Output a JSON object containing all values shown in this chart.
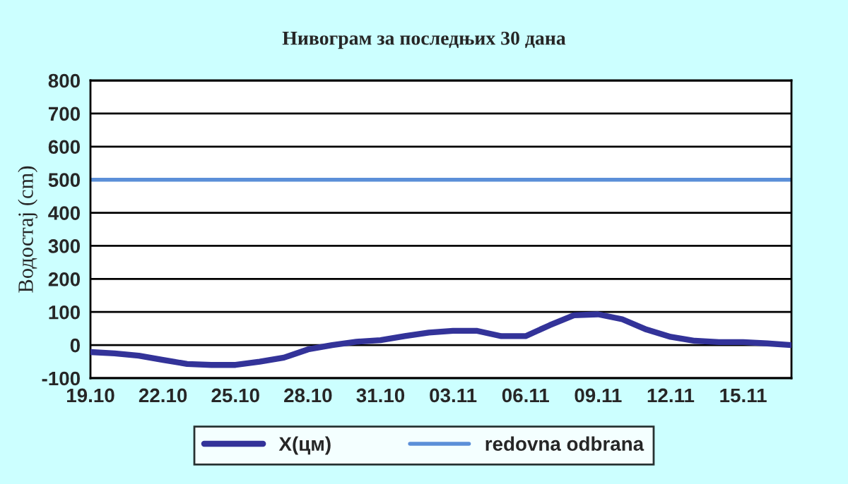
{
  "chart_data": {
    "type": "line",
    "title": "Нивограм за последњих 30 дана",
    "ylabel": "Водостај (cm)",
    "categories": [
      "19.10",
      null,
      null,
      "22.10",
      null,
      null,
      "25.10",
      null,
      null,
      "28.10",
      null,
      null,
      "31.10",
      null,
      null,
      "03.11",
      null,
      null,
      "06.11",
      null,
      null,
      "09.11",
      null,
      null,
      "12.11",
      null,
      null,
      "15.11",
      null,
      null
    ],
    "series": [
      {
        "name": "X(цм)",
        "color": "#333399",
        "values": [
          -21,
          -25,
          -32,
          -45,
          -57,
          -60,
          -60,
          -50,
          -38,
          -13,
          0,
          10,
          15,
          27,
          38,
          43,
          43,
          27,
          27,
          60,
          90,
          93,
          78,
          47,
          25,
          13,
          9,
          9,
          5,
          0
        ]
      }
    ],
    "ref_lines": [
      {
        "axis": "y",
        "value": 500,
        "label": "redovna odbrana",
        "color": "#5b8fd8",
        "line_style": "solid"
      }
    ],
    "ylim": [
      -100,
      800
    ],
    "yticks": [
      -100,
      0,
      100,
      200,
      300,
      400,
      500,
      600,
      700,
      800
    ],
    "grid": "y",
    "legend": "bottom",
    "marker": "none",
    "line_style": "solid"
  }
}
